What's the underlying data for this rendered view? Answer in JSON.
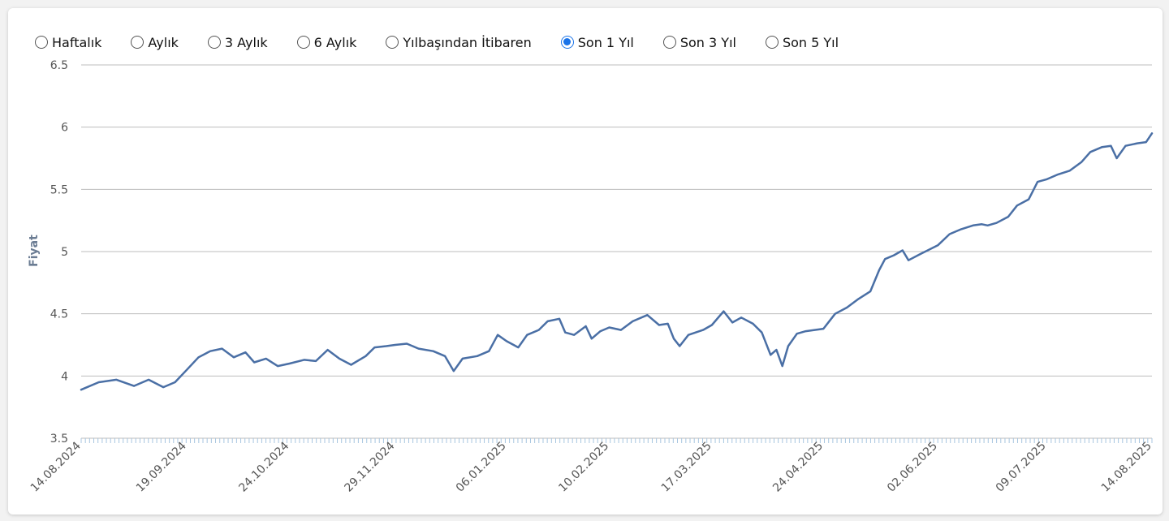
{
  "range_selector": {
    "options": [
      {
        "label": "Haftalık",
        "checked": false
      },
      {
        "label": "Aylık",
        "checked": false
      },
      {
        "label": "3 Aylık",
        "checked": false
      },
      {
        "label": "6 Aylık",
        "checked": false
      },
      {
        "label": "Yılbaşından İtibaren",
        "checked": false
      },
      {
        "label": "Son 1 Yıl",
        "checked": true
      },
      {
        "label": "Son 3 Yıl",
        "checked": false
      },
      {
        "label": "Son 5 Yıl",
        "checked": false
      }
    ]
  },
  "colors": {
    "line": "#4a6fa5",
    "grid": "#bdbdbd",
    "tick_marks": "#a8c6e0",
    "ylabel": "#6b7c93",
    "radio_accent": "#1a73e8"
  },
  "chart_data": {
    "type": "line",
    "title": "",
    "xlabel": "",
    "ylabel": "Fiyat",
    "ylim": [
      3.5,
      6.5
    ],
    "yticks": [
      "3.5",
      "4",
      "4.5",
      "5",
      "5.5",
      "6",
      "6.5"
    ],
    "grid": true,
    "legend": "none",
    "x_start": "14.08.2024",
    "x_end": "14.08.2025",
    "xtick_labels": [
      "14.08.2024",
      "19.09.2024",
      "24.10.2024",
      "29.11.2024",
      "06.01.2025",
      "10.02.2025",
      "17.03.2025",
      "24.04.2025",
      "02.06.2025",
      "09.07.2025",
      "14.08.2025"
    ],
    "series": [
      {
        "name": "",
        "points": [
          [
            "14.08.2024",
            3.89
          ],
          [
            "20.08.2024",
            3.95
          ],
          [
            "26.08.2024",
            3.97
          ],
          [
            "01.09.2024",
            3.92
          ],
          [
            "06.09.2024",
            3.97
          ],
          [
            "11.09.2024",
            3.91
          ],
          [
            "15.09.2024",
            3.95
          ],
          [
            "19.09.2024",
            4.05
          ],
          [
            "23.09.2024",
            4.15
          ],
          [
            "27.09.2024",
            4.2
          ],
          [
            "01.10.2024",
            4.22
          ],
          [
            "05.10.2024",
            4.15
          ],
          [
            "09.10.2024",
            4.19
          ],
          [
            "12.10.2024",
            4.11
          ],
          [
            "16.10.2024",
            4.14
          ],
          [
            "20.10.2024",
            4.08
          ],
          [
            "24.10.2024",
            4.1
          ],
          [
            "29.10.2024",
            4.13
          ],
          [
            "02.11.2024",
            4.12
          ],
          [
            "06.11.2024",
            4.21
          ],
          [
            "10.11.2024",
            4.14
          ],
          [
            "14.11.2024",
            4.09
          ],
          [
            "19.11.2024",
            4.16
          ],
          [
            "22.11.2024",
            4.23
          ],
          [
            "26.11.2024",
            4.24
          ],
          [
            "29.11.2024",
            4.25
          ],
          [
            "03.12.2024",
            4.26
          ],
          [
            "07.12.2024",
            4.22
          ],
          [
            "12.12.2024",
            4.2
          ],
          [
            "16.12.2024",
            4.16
          ],
          [
            "19.12.2024",
            4.04
          ],
          [
            "22.12.2024",
            4.14
          ],
          [
            "27.12.2024",
            4.16
          ],
          [
            "31.12.2024",
            4.2
          ],
          [
            "03.01.2025",
            4.33
          ],
          [
            "06.01.2025",
            4.28
          ],
          [
            "10.01.2025",
            4.23
          ],
          [
            "13.01.2025",
            4.33
          ],
          [
            "17.01.2025",
            4.37
          ],
          [
            "20.01.2025",
            4.44
          ],
          [
            "24.01.2025",
            4.46
          ],
          [
            "26.01.2025",
            4.35
          ],
          [
            "29.01.2025",
            4.33
          ],
          [
            "02.02.2025",
            4.4
          ],
          [
            "04.02.2025",
            4.3
          ],
          [
            "07.02.2025",
            4.36
          ],
          [
            "10.02.2025",
            4.39
          ],
          [
            "14.02.2025",
            4.37
          ],
          [
            "18.02.2025",
            4.44
          ],
          [
            "23.02.2025",
            4.49
          ],
          [
            "27.02.2025",
            4.41
          ],
          [
            "02.03.2025",
            4.42
          ],
          [
            "04.03.2025",
            4.3
          ],
          [
            "06.03.2025",
            4.24
          ],
          [
            "09.03.2025",
            4.33
          ],
          [
            "14.03.2025",
            4.37
          ],
          [
            "17.03.2025",
            4.41
          ],
          [
            "21.03.2025",
            4.52
          ],
          [
            "24.03.2025",
            4.43
          ],
          [
            "27.03.2025",
            4.47
          ],
          [
            "31.03.2025",
            4.42
          ],
          [
            "03.04.2025",
            4.35
          ],
          [
            "06.04.2025",
            4.17
          ],
          [
            "08.04.2025",
            4.21
          ],
          [
            "10.04.2025",
            4.08
          ],
          [
            "12.04.2025",
            4.24
          ],
          [
            "15.04.2025",
            4.34
          ],
          [
            "18.04.2025",
            4.36
          ],
          [
            "24.04.2025",
            4.38
          ],
          [
            "28.04.2025",
            4.5
          ],
          [
            "02.05.2025",
            4.55
          ],
          [
            "06.05.2025",
            4.62
          ],
          [
            "10.05.2025",
            4.68
          ],
          [
            "13.05.2025",
            4.85
          ],
          [
            "15.05.2025",
            4.94
          ],
          [
            "18.05.2025",
            4.97
          ],
          [
            "21.05.2025",
            5.01
          ],
          [
            "23.05.2025",
            4.93
          ],
          [
            "27.05.2025",
            4.98
          ],
          [
            "02.06.2025",
            5.05
          ],
          [
            "06.06.2025",
            5.14
          ],
          [
            "10.06.2025",
            5.18
          ],
          [
            "14.06.2025",
            5.21
          ],
          [
            "17.06.2025",
            5.22
          ],
          [
            "19.06.2025",
            5.21
          ],
          [
            "22.06.2025",
            5.23
          ],
          [
            "26.06.2025",
            5.28
          ],
          [
            "29.06.2025",
            5.37
          ],
          [
            "03.07.2025",
            5.42
          ],
          [
            "06.07.2025",
            5.56
          ],
          [
            "09.07.2025",
            5.58
          ],
          [
            "13.07.2025",
            5.62
          ],
          [
            "17.07.2025",
            5.65
          ],
          [
            "21.07.2025",
            5.72
          ],
          [
            "24.07.2025",
            5.8
          ],
          [
            "28.07.2025",
            5.84
          ],
          [
            "31.07.2025",
            5.85
          ],
          [
            "02.08.2025",
            5.75
          ],
          [
            "05.08.2025",
            5.85
          ],
          [
            "09.08.2025",
            5.87
          ],
          [
            "12.08.2025",
            5.88
          ],
          [
            "14.08.2025",
            5.95
          ]
        ]
      }
    ]
  }
}
